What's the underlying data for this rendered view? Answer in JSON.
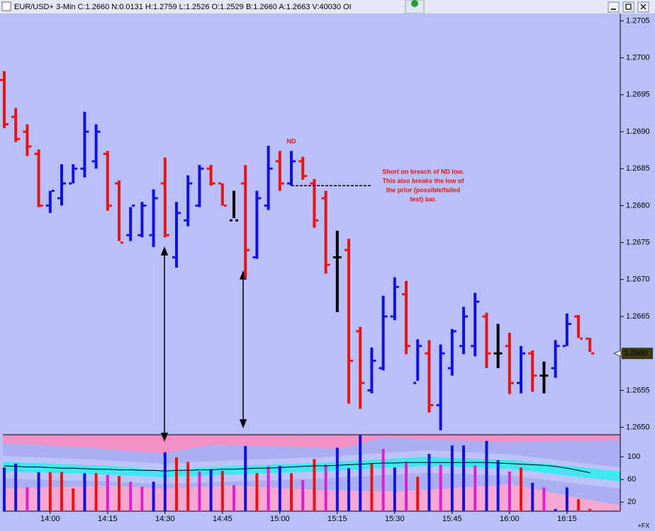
{
  "window_title": "EUR/USD+ 3-Min C:1.2660 N:0.0131 H:1.2759 L:1.2526 O:1.2529 B:1.2660 A:1.2663 V:40030 OI",
  "chart_data": [
    {
      "type": "ohlc",
      "categories": [
        null,
        null,
        null,
        null,
        null,
        null,
        null,
        null,
        null,
        null,
        null,
        null,
        null,
        null,
        null,
        null,
        null,
        null,
        null,
        null,
        null,
        null,
        null,
        null,
        null,
        null,
        null,
        null,
        null,
        null,
        null,
        null,
        null,
        null,
        null,
        null,
        null,
        null,
        null,
        null,
        null,
        null,
        null,
        null,
        null,
        null,
        null,
        null,
        null,
        null,
        null,
        null
      ],
      "open": [
        1.2697,
        1.2692,
        1.269,
        1.2687,
        1.268,
        1.2681,
        1.2683,
        1.2685,
        1.2686,
        1.2687,
        1.2683,
        1.2676,
        1.2676,
        1.2676,
        1.2683,
        1.2673,
        1.2678,
        1.268,
        1.2685,
        1.2683,
        1.2678,
        1.2683,
        1.2673,
        1.268,
        1.2686,
        1.2683,
        1.2686,
        1.2683,
        1.2681,
        1.2673,
        1.2674,
        1.2663,
        1.2655,
        1.2658,
        1.2665,
        1.2668,
        1.2656,
        1.266,
        1.2653,
        1.2658,
        1.2661,
        1.2661,
        1.2665,
        1.266,
        1.2661,
        1.2656,
        1.266,
        1.2657,
        1.2658,
        1.2661,
        1.2665,
        1.2662
      ],
      "high": [
        1.26982,
        1.26932,
        1.2691,
        1.26876,
        1.2682,
        1.26856,
        1.26856,
        1.26927,
        1.2691,
        1.26874,
        1.26834,
        1.26798,
        1.26805,
        1.26822,
        1.26865,
        1.26805,
        1.26841,
        1.26855,
        1.26855,
        1.2683,
        1.2682,
        1.26855,
        1.2682,
        1.26881,
        1.26874,
        1.26874,
        1.26866,
        1.26836,
        1.2682,
        1.26766,
        1.26755,
        1.26636,
        1.26608,
        1.26678,
        1.26703,
        1.26698,
        1.26619,
        1.26618,
        1.26612,
        1.26633,
        1.26663,
        1.26682,
        1.26655,
        1.2664,
        1.26628,
        1.2661,
        1.26604,
        1.26589,
        1.26618,
        1.26654,
        1.26652,
        1.26621
      ],
      "low": [
        1.26905,
        1.26886,
        1.26867,
        1.26798,
        1.2679,
        1.268,
        1.2683,
        1.26838,
        1.2685,
        1.26793,
        1.26752,
        1.26752,
        1.26757,
        1.26744,
        1.26757,
        1.26716,
        1.26772,
        1.26798,
        1.26827,
        1.268,
        1.26783,
        1.26702,
        1.26728,
        1.26794,
        1.2682,
        1.26827,
        1.26835,
        1.2677,
        1.26708,
        1.26656,
        1.26532,
        1.26525,
        1.26546,
        1.26577,
        1.26645,
        1.26599,
        1.26563,
        1.2652,
        1.26496,
        1.2657,
        1.26599,
        1.26596,
        1.2658,
        1.2658,
        1.26545,
        1.26546,
        1.26548,
        1.26546,
        1.26567,
        1.2661,
        1.26621,
        1.26602
      ],
      "close": [
        1.2691,
        1.2689,
        1.2688,
        1.268,
        1.2682,
        1.2683,
        1.2685,
        1.269,
        1.269,
        1.268,
        1.2675,
        1.268,
        1.268,
        1.2681,
        1.2676,
        1.2679,
        1.2683,
        1.2685,
        1.2683,
        1.268,
        1.2678,
        1.2674,
        1.2681,
        1.2685,
        1.2683,
        1.2686,
        1.2684,
        1.2678,
        1.2672,
        1.2673,
        1.2659,
        1.2656,
        1.2659,
        1.2665,
        1.2669,
        1.2661,
        1.2661,
        1.2653,
        1.266,
        1.2663,
        1.2665,
        1.2667,
        1.266,
        1.266,
        1.2656,
        1.266,
        1.2657,
        1.2657,
        1.2661,
        1.2664,
        1.2662,
        1.266
      ],
      "colors": [
        "#ee1111",
        "#ee1111",
        "#ee1111",
        "#ee1111",
        "#1010e0",
        "#1010e0",
        "#1010e0",
        "#1010e0",
        "#1010e0",
        "#ee1111",
        "#ee1111",
        "#1010e0",
        "#1010e0",
        "#1010e0",
        "#ee1111",
        "#1010e0",
        "#1010e0",
        "#1010e0",
        "#ee1111",
        "#ee1111",
        "#000000",
        "#ee1111",
        "#1010e0",
        "#1010e0",
        "#ee1111",
        "#1010e0",
        "#ee1111",
        "#ee1111",
        "#ee1111",
        "#000000",
        "#ee1111",
        "#ee1111",
        "#1010e0",
        "#1010e0",
        "#1010e0",
        "#ee1111",
        "#1010e0",
        "#ee1111",
        "#1010e0",
        "#1010e0",
        "#1010e0",
        "#1010e0",
        "#ee1111",
        "#000000",
        "#ee1111",
        "#1010e0",
        "#ee1111",
        "#000000",
        "#1010e0",
        "#1010e0",
        "#ee1111",
        "#ee1111"
      ],
      "ylim": [
        1.2649,
        1.2706
      ],
      "yticks": [
        1.2705,
        {
          "value": 1.27,
          "label": "1.2700"
        },
        1.2695,
        {
          "value": 1.269,
          "label": "1.2690"
        },
        1.2685,
        {
          "value": 1.268,
          "label": "1.2680"
        },
        1.2675,
        {
          "value": 1.267,
          "label": "1.2670"
        },
        1.2665,
        {
          "value": 1.266,
          "label": "1.2660"
        },
        1.2655,
        {
          "value": 1.265,
          "label": "1.2650"
        }
      ],
      "last_price": {
        "value": 1.266,
        "label": "1.2660"
      },
      "nd_label": "ND",
      "note": [
        "Short on breach of ND low.",
        "This also breaks the low of",
        "the prior (possible/failed",
        "test) bar."
      ]
    },
    {
      "type": "bar",
      "categories": [
        null,
        null,
        null,
        null,
        "14:00",
        null,
        null,
        null,
        null,
        "14:15",
        null,
        null,
        null,
        null,
        "14:30",
        null,
        null,
        null,
        null,
        "14:45",
        null,
        null,
        null,
        null,
        "15:00",
        null,
        null,
        null,
        null,
        "15:15",
        null,
        null,
        null,
        null,
        "15:30",
        null,
        null,
        null,
        null,
        "15:45",
        null,
        null,
        null,
        null,
        "16:00",
        null,
        null,
        null,
        null,
        "16:15",
        null,
        null
      ],
      "values": [
        81,
        88,
        46,
        73,
        73,
        73,
        44,
        71,
        71,
        68,
        66,
        56,
        47,
        56,
        108,
        99,
        91,
        74,
        78,
        75,
        50,
        119,
        71,
        83,
        84,
        71,
        59,
        96,
        86,
        116,
        80,
        138,
        89,
        114,
        81,
        91,
        65,
        105,
        86,
        120,
        120,
        85,
        128,
        94,
        74,
        81,
        54,
        46,
        8,
        46,
        25,
        8
      ],
      "colors": [
        "#1010e0",
        "#1010e0",
        "#e020d0",
        "#1010e0",
        "#ee1111",
        "#ee1111",
        "#ee1111",
        "#1010e0",
        "#ee1111",
        "#e020d0",
        "#ee1111",
        "#e020d0",
        "#e020d0",
        "#1010e0",
        "#1010e0",
        "#ee1111",
        "#ee1111",
        "#e020d0",
        "#1010e0",
        "#ee1111",
        "#e020d0",
        "#1010e0",
        "#ee1111",
        "#e020d0",
        "#1010e0",
        "#ee1111",
        "#e020d0",
        "#ee1111",
        "#e020d0",
        "#1010e0",
        "#1010e0",
        "#1010e0",
        "#ee1111",
        "#e020d0",
        "#1010e0",
        "#e020d0",
        "#ee1111",
        "#1010e0",
        "#e020d0",
        "#1010e0",
        "#1010e0",
        "#e020d0",
        "#1010e0",
        "#1010e0",
        "#e020d0",
        "#ee1111",
        "#1010e0",
        "#e020d0",
        "#1010e0",
        "#1010e0",
        "#ee1111",
        "#ee1111"
      ],
      "ma_values": [
        84,
        83,
        82,
        82,
        81,
        80,
        80,
        79,
        78,
        78,
        77,
        77,
        76,
        76,
        75,
        76,
        76,
        77,
        77,
        78,
        78,
        79,
        80,
        80,
        81,
        82,
        83,
        84,
        84,
        85,
        86,
        87,
        88,
        89,
        89,
        90,
        90,
        90,
        90,
        90,
        90,
        90,
        90,
        89,
        88,
        87,
        86,
        85,
        83,
        80,
        76,
        72
      ],
      "ma_color": "#000000",
      "ylim": [
        4,
        139
      ],
      "yticks": [
        100,
        60,
        20
      ],
      "corner_label": "+FX"
    }
  ]
}
